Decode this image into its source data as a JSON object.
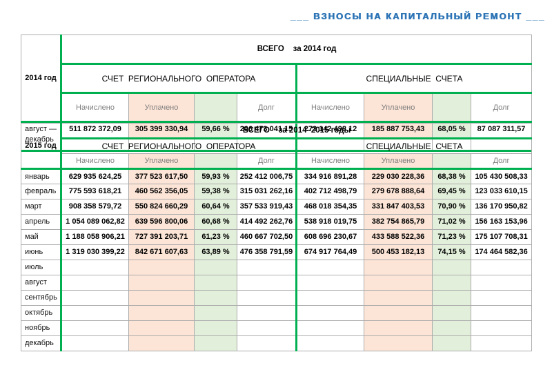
{
  "title": "___ ВЗНОСЫ НА КАПИТАЛЬНЫЙ РЕМОНТ ___",
  "colors": {
    "title_blue": "#2E75B6",
    "section_border_green": "#00B050",
    "paid_column_bg": "#FCE4D6",
    "percent_column_bg": "#E2EFDA",
    "grid_gray": "#ACACAC",
    "header_text_gray": "#7F7F7F"
  },
  "tables": [
    {
      "year_label": "2014 год",
      "total_label": "ВСЕГО    за 2014 год",
      "groups": [
        "СЧЕТ  РЕГИОНАЛЬНОГО  ОПЕРАТОРА",
        "СПЕЦИАЛЬНЫЕ  СЧЕТА"
      ],
      "col_headers": [
        "Начислено",
        "Уплачено",
        "",
        "Долг"
      ],
      "rows": [
        {
          "label": "август —\nдекабрь",
          "values": [
            "511 872 372,09",
            "305 399 330,94",
            "59,66 %",
            "206 473 041,15",
            "273 142 498,12",
            "185 887 753,43",
            "68,05 %",
            "87 087 311,57"
          ]
        }
      ]
    },
    {
      "year_label": "2015 год",
      "total_label": "ВСЕГО    за 2014–2015 годы",
      "groups": [
        "СЧЕТ  РЕГИОНАЛЬНОГО  ОПЕРАТОРА",
        "СПЕЦИАЛЬНЫЕ  СЧЕТА"
      ],
      "col_headers": [
        "Начислено",
        "Уплачено",
        "",
        "Долг"
      ],
      "rows": [
        {
          "label": "январь",
          "values": [
            "629 935 624,25",
            "377 523 617,50",
            "59,93 %",
            "252 412 006,75",
            "334 916 891,28",
            "229 030 228,36",
            "68,38 %",
            "105 430 508,33"
          ]
        },
        {
          "label": "февраль",
          "values": [
            "775 593 618,21",
            "460 562 356,05",
            "59,38 %",
            "315 031 262,16",
            "402 712 498,79",
            "279 678 888,64",
            "69,45 %",
            "123 033 610,15"
          ]
        },
        {
          "label": "март",
          "values": [
            "908 358 579,72",
            "550 824 660,29",
            "60,64 %",
            "357 533 919,43",
            "468 018 354,35",
            "331 847 403,53",
            "70,90 %",
            "136 170 950,82"
          ]
        },
        {
          "label": "апрель",
          "values": [
            "1 054 089 062,82",
            "639 596 800,06",
            "60,68 %",
            "414 492 262,76",
            "538 918 019,75",
            "382 754 865,79",
            "71,02 %",
            "156 163 153,96"
          ]
        },
        {
          "label": "май",
          "values": [
            "1 188 058 906,21",
            "727 391 203,71",
            "61,23 %",
            "460 667 702,50",
            "608 696 230,67",
            "433 588 522,36",
            "71,23 %",
            "175 107 708,31"
          ]
        },
        {
          "label": "июнь",
          "values": [
            "1 319 030 399,22",
            "842 671 607,63",
            "63,89 %",
            "476 358 791,59",
            "674 917 764,49",
            "500 453 182,13",
            "74,15 %",
            "174 464 582,36"
          ]
        },
        {
          "label": "июль",
          "values": [
            "",
            "",
            "",
            "",
            "",
            "",
            "",
            ""
          ]
        },
        {
          "label": "август",
          "values": [
            "",
            "",
            "",
            "",
            "",
            "",
            "",
            ""
          ]
        },
        {
          "label": "сентябрь",
          "values": [
            "",
            "",
            "",
            "",
            "",
            "",
            "",
            ""
          ]
        },
        {
          "label": "октябрь",
          "values": [
            "",
            "",
            "",
            "",
            "",
            "",
            "",
            ""
          ]
        },
        {
          "label": "ноябрь",
          "values": [
            "",
            "",
            "",
            "",
            "",
            "",
            "",
            ""
          ]
        },
        {
          "label": "декабрь",
          "values": [
            "",
            "",
            "",
            "",
            "",
            "",
            "",
            ""
          ]
        }
      ]
    }
  ]
}
